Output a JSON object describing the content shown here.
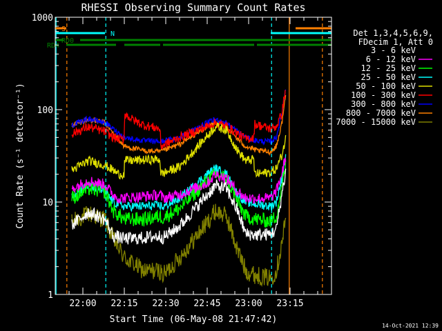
{
  "chart_data": {
    "type": "line",
    "title": "RHESSI Observing Summary Count Rates",
    "xlabel": "Start Time (06-May-08 21:47:42)",
    "ylabel": "Count Rate (s⁻¹ detector⁻¹)",
    "y_scale": "log",
    "ylim": [
      1,
      1000
    ],
    "xlim_minutes_from_2140": [
      10,
      110
    ],
    "x_ticks": [
      {
        "label": "22:00",
        "t": 20
      },
      {
        "label": "22:15",
        "t": 35
      },
      {
        "label": "22:30",
        "t": 50
      },
      {
        "label": "22:45",
        "t": 65
      },
      {
        "label": "23:00",
        "t": 80
      },
      {
        "label": "23:15",
        "t": 95
      }
    ],
    "y_ticks": [
      {
        "label": "1",
        "v": 1
      },
      {
        "label": "10",
        "v": 10
      },
      {
        "label": "100",
        "v": 100
      },
      {
        "label": "1000",
        "v": 1000
      }
    ],
    "legend_header": [
      "Det 1,3,4,5,6,9,",
      "FDecim 1, Att 0"
    ],
    "legend_position": "right",
    "timestamp": "14-Oct-2021 12:39",
    "flags": [
      {
        "label": "S",
        "color": "#ff8000",
        "segments": [
          [
            10,
            14
          ],
          [
            97,
            110
          ]
        ]
      },
      {
        "label": "N",
        "color": "#00ffff",
        "segments": [
          [
            10,
            28
          ],
          [
            88,
            110
          ]
        ]
      },
      {
        "label": "RD0",
        "color": "#008000",
        "segments": [
          [
            10,
            13
          ],
          [
            19,
            110
          ]
        ]
      },
      {
        "label": "RD4",
        "color": "#008000",
        "segments": [
          [
            14,
            32
          ],
          [
            35,
            48
          ],
          [
            49,
            82
          ],
          [
            83,
            110
          ]
        ]
      }
    ],
    "vlines": [
      {
        "t": 10.3,
        "color": "#00ffff",
        "dash": false
      },
      {
        "t": 14.2,
        "color": "#ff8000",
        "dash": true
      },
      {
        "t": 28.3,
        "color": "#00ffff",
        "dash": true
      },
      {
        "t": 88.3,
        "color": "#00ffff",
        "dash": true
      },
      {
        "t": 94.7,
        "color": "#ff8000",
        "dash": false
      },
      {
        "t": 106.7,
        "color": "#ff8000",
        "dash": true
      }
    ],
    "series": [
      {
        "name": "3 - 6 keV",
        "color": "#000000",
        "drawn_as": "white",
        "noise": 0.07,
        "points": [
          [
            16,
            5.6
          ],
          [
            22,
            7.8
          ],
          [
            28,
            6.5
          ],
          [
            31,
            4.3
          ],
          [
            35,
            4.0
          ],
          [
            42,
            4.1
          ],
          [
            48,
            4.3
          ],
          [
            49,
            4.1
          ],
          [
            55,
            5.5
          ],
          [
            65,
            12
          ],
          [
            68,
            15
          ],
          [
            72,
            14
          ],
          [
            76,
            8
          ],
          [
            79,
            4.5
          ],
          [
            83,
            4.4
          ],
          [
            88,
            4.5
          ],
          [
            90,
            5
          ],
          [
            92,
            12
          ],
          [
            93.5,
            22
          ]
        ]
      },
      {
        "name": "6 - 12 keV",
        "color": "#ff00ff",
        "noise": 0.06,
        "points": [
          [
            16,
            14
          ],
          [
            22,
            17
          ],
          [
            28,
            15.5
          ],
          [
            31,
            12
          ],
          [
            33,
            11
          ],
          [
            42,
            11.5
          ],
          [
            48,
            12
          ],
          [
            49,
            11
          ],
          [
            55,
            12
          ],
          [
            65,
            16
          ],
          [
            68,
            20
          ],
          [
            72,
            18
          ],
          [
            76,
            13
          ],
          [
            79,
            11
          ],
          [
            83,
            11
          ],
          [
            88,
            11
          ],
          [
            90,
            13
          ],
          [
            92,
            20
          ],
          [
            93.5,
            32
          ]
        ]
      },
      {
        "name": "12 - 25 keV",
        "color": "#00ff00",
        "noise": 0.08,
        "points": [
          [
            16,
            11
          ],
          [
            22,
            14
          ],
          [
            28,
            13
          ],
          [
            31,
            8
          ],
          [
            35,
            6.5
          ],
          [
            42,
            6.5
          ],
          [
            48,
            7
          ],
          [
            49,
            6.8
          ],
          [
            55,
            8.5
          ],
          [
            65,
            17
          ],
          [
            68,
            20
          ],
          [
            72,
            18
          ],
          [
            76,
            10
          ],
          [
            79,
            7
          ],
          [
            83,
            6.5
          ],
          [
            88,
            6.2
          ],
          [
            90,
            7
          ],
          [
            92,
            14
          ],
          [
            93.5,
            26
          ]
        ]
      },
      {
        "name": "25 - 50 keV",
        "color": "#00ffff",
        "noise": 0.05,
        "points": [
          [
            16,
            12
          ],
          [
            22,
            15
          ],
          [
            28,
            13
          ],
          [
            31,
            10
          ],
          [
            35,
            9
          ],
          [
            42,
            9
          ],
          [
            48,
            9.2
          ],
          [
            49,
            8.8
          ],
          [
            55,
            11
          ],
          [
            65,
            20
          ],
          [
            68,
            23
          ],
          [
            72,
            20
          ],
          [
            76,
            12
          ],
          [
            79,
            10
          ],
          [
            83,
            9.5
          ],
          [
            88,
            9
          ],
          [
            90,
            10
          ],
          [
            92,
            18
          ],
          [
            93.5,
            33
          ]
        ]
      },
      {
        "name": "50 - 100 keV",
        "color": "#e0e000",
        "noise": 0.05,
        "points": [
          [
            16,
            22
          ],
          [
            22,
            28
          ],
          [
            28,
            25
          ],
          [
            31,
            22
          ],
          [
            33,
            20
          ],
          [
            35,
            20
          ],
          [
            35.1,
            28
          ],
          [
            42,
            28.5
          ],
          [
            48,
            29
          ],
          [
            48.1,
            20
          ],
          [
            55,
            24
          ],
          [
            65,
            52
          ],
          [
            68,
            66
          ],
          [
            72,
            60
          ],
          [
            76,
            36
          ],
          [
            79,
            28
          ],
          [
            82,
            29
          ],
          [
            82.1,
            20
          ],
          [
            88,
            21
          ],
          [
            90,
            23
          ],
          [
            92,
            32
          ],
          [
            93.5,
            50
          ]
        ]
      },
      {
        "name": "100 - 300 keV",
        "color": "#ff0000",
        "noise": 0.05,
        "points": [
          [
            16,
            55
          ],
          [
            22,
            65
          ],
          [
            28,
            58
          ],
          [
            31,
            50
          ],
          [
            33,
            48
          ],
          [
            35,
            47
          ],
          [
            35.1,
            90
          ],
          [
            38,
            78
          ],
          [
            42,
            68
          ],
          [
            48,
            62
          ],
          [
            48.1,
            40
          ],
          [
            55,
            50
          ],
          [
            65,
            66
          ],
          [
            68,
            72
          ],
          [
            72,
            66
          ],
          [
            76,
            55
          ],
          [
            79,
            48
          ],
          [
            82,
            50
          ],
          [
            82.1,
            70
          ],
          [
            88,
            62
          ],
          [
            90,
            66
          ],
          [
            92,
            90
          ],
          [
            93.5,
            180
          ]
        ]
      },
      {
        "name": "300 - 800 keV",
        "color": "#0000ff",
        "noise": 0.03,
        "points": [
          [
            16,
            68
          ],
          [
            22,
            80
          ],
          [
            28,
            72
          ],
          [
            31,
            62
          ],
          [
            35,
            50
          ],
          [
            42,
            46
          ],
          [
            48,
            45
          ],
          [
            55,
            50
          ],
          [
            65,
            72
          ],
          [
            68,
            78
          ],
          [
            72,
            72
          ],
          [
            76,
            58
          ],
          [
            79,
            50
          ],
          [
            83,
            46
          ],
          [
            88,
            45
          ],
          [
            90,
            50
          ],
          [
            92,
            90
          ],
          [
            93.5,
            180
          ]
        ]
      },
      {
        "name": "800 - 7000 keV",
        "color": "#ff8000",
        "noise": 0.03,
        "points": [
          [
            16,
            68
          ],
          [
            22,
            78
          ],
          [
            28,
            72
          ],
          [
            31,
            55
          ],
          [
            35,
            40
          ],
          [
            42,
            36
          ],
          [
            48,
            35
          ],
          [
            55,
            42
          ],
          [
            65,
            66
          ],
          [
            68,
            72
          ],
          [
            72,
            66
          ],
          [
            76,
            48
          ],
          [
            79,
            40
          ],
          [
            83,
            36
          ],
          [
            88,
            35
          ],
          [
            90,
            40
          ],
          [
            92,
            70
          ],
          [
            93.5,
            150
          ]
        ]
      },
      {
        "name": "7000 - 15000 keV",
        "color": "#808000",
        "noise": 0.1,
        "points": [
          [
            16,
            6
          ],
          [
            22,
            7.5
          ],
          [
            28,
            6.5
          ],
          [
            31,
            4
          ],
          [
            35,
            2.5
          ],
          [
            42,
            1.8
          ],
          [
            48,
            1.8
          ],
          [
            49,
            1.6
          ],
          [
            55,
            2.5
          ],
          [
            65,
            6
          ],
          [
            68,
            8
          ],
          [
            72,
            7
          ],
          [
            76,
            3
          ],
          [
            79,
            1.8
          ],
          [
            83,
            1.6
          ],
          [
            88,
            1.5
          ],
          [
            90,
            1.8
          ],
          [
            92,
            3.5
          ],
          [
            93.5,
            7
          ]
        ]
      }
    ]
  }
}
